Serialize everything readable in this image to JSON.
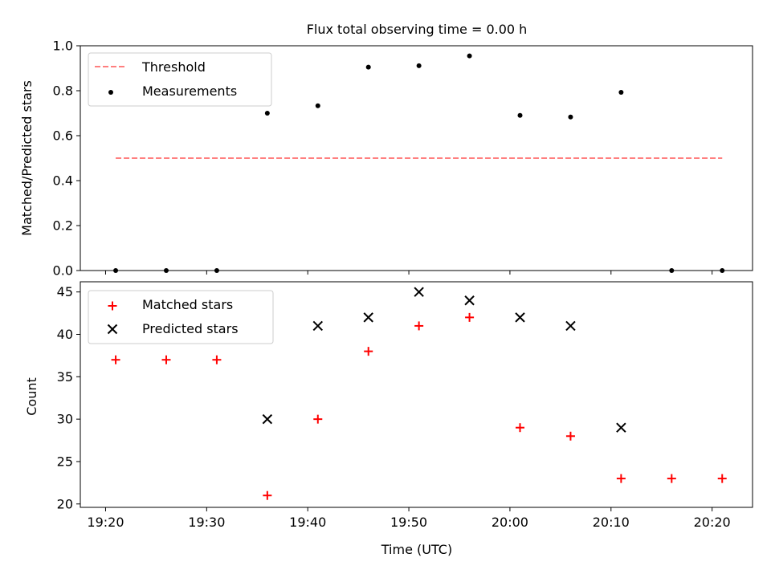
{
  "chart_data": [
    {
      "type": "scatter",
      "title": "Flux total observing time = 0.00 h",
      "xlabel": "",
      "ylabel": "Matched/Predicted stars",
      "ylim": [
        0,
        1.0
      ],
      "yticks": [
        "0.0",
        "0.2",
        "0.4",
        "0.6",
        "0.8",
        "1.0"
      ],
      "xlim_minutes": [
        1157.5,
        1224
      ],
      "shared_x": true,
      "legend_position": "top-left",
      "threshold": {
        "name": "Threshold",
        "y": 0.5,
        "x": [
          "19:21",
          "20:21"
        ],
        "color": "#ff7f7f",
        "style": "dashed"
      },
      "series": [
        {
          "name": "Measurements",
          "marker": "dot",
          "color": "#000000",
          "x": [
            "19:21",
            "19:26",
            "19:31",
            "19:36",
            "19:41",
            "19:46",
            "19:51",
            "19:56",
            "20:01",
            "20:06",
            "20:11",
            "20:16",
            "20:21"
          ],
          "y": [
            0.0,
            0.0,
            0.0,
            0.7,
            0.733,
            0.905,
            0.911,
            0.955,
            0.69,
            0.683,
            0.793,
            0.0,
            0.0
          ]
        }
      ]
    },
    {
      "type": "scatter",
      "xlabel": "Time (UTC)",
      "ylabel": "Count",
      "ylim": [
        19.6,
        46.2
      ],
      "yticks": [
        "20",
        "25",
        "30",
        "35",
        "40",
        "45"
      ],
      "xticks": [
        "19:20",
        "19:30",
        "19:40",
        "19:50",
        "20:00",
        "20:10",
        "20:20"
      ],
      "legend_position": "top-left",
      "series": [
        {
          "name": "Matched stars",
          "marker": "plus",
          "color": "#ff0000",
          "x": [
            "19:21",
            "19:26",
            "19:31",
            "19:36",
            "19:41",
            "19:46",
            "19:51",
            "19:56",
            "20:01",
            "20:06",
            "20:11",
            "20:16",
            "20:21"
          ],
          "y": [
            37,
            37,
            37,
            21,
            30,
            38,
            41,
            42,
            29,
            28,
            23,
            23,
            23
          ]
        },
        {
          "name": "Predicted stars",
          "marker": "x",
          "color": "#000000",
          "x": [
            "19:36",
            "19:41",
            "19:46",
            "19:51",
            "19:56",
            "20:01",
            "20:06",
            "20:11"
          ],
          "y": [
            30,
            41,
            42,
            45,
            44,
            42,
            41,
            29
          ]
        }
      ]
    }
  ]
}
